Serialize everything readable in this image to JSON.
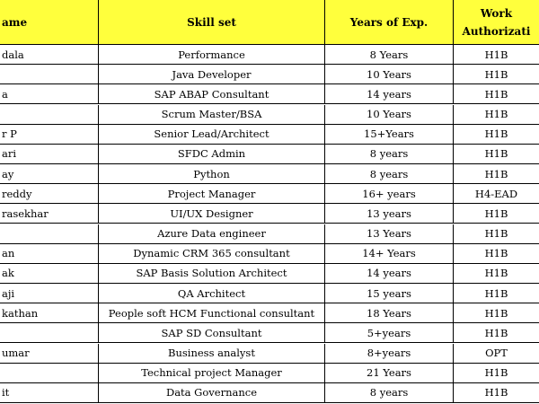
{
  "table": {
    "header": [
      "ame",
      "Skill set",
      "Years of Exp.",
      "Work Authorizati"
    ],
    "rows": [
      [
        "dala",
        "Performance",
        "8 Years",
        "H1B"
      ],
      [
        null,
        "Java Developer",
        "10 Years",
        "H1B"
      ],
      [
        "a",
        "SAP ABAP Consultant",
        "14 years",
        "H1B"
      ],
      [
        null,
        "Scrum Master/BSA",
        "10 Years",
        "H1B"
      ],
      [
        "r P",
        "Senior Lead/Architect",
        "15+Years",
        "H1B"
      ],
      [
        "ari",
        "SFDC Admin",
        "8 years",
        "H1B"
      ],
      [
        "ay",
        "Python",
        "8 years",
        "H1B"
      ],
      [
        "reddy",
        "Project Manager",
        "16+ years",
        "H4-EAD"
      ],
      [
        "rasekhar",
        "UI/UX Designer",
        "13 years",
        "H1B"
      ],
      [
        null,
        "Azure Data engineer",
        "13 Years",
        "H1B"
      ],
      [
        "an",
        "Dynamic CRM 365 consultant",
        "14+ Years",
        "H1B"
      ],
      [
        "ak",
        "SAP Basis Solution Architect",
        "14 years",
        "H1B"
      ],
      [
        "aji",
        "QA Architect",
        "15 years",
        "H1B"
      ],
      [
        "kathan",
        "People soft HCM Functional consultant",
        "18 Years",
        "H1B"
      ],
      [
        null,
        "SAP SD Consultant",
        "5+years",
        "H1B"
      ],
      [
        "umar",
        "Business analyst",
        "8+years",
        "OPT"
      ],
      [
        null,
        "Technical project Manager",
        "21 Years",
        "H1B"
      ],
      [
        "it",
        "Data Governance",
        "8 years",
        "H1B"
      ]
    ]
  }
}
